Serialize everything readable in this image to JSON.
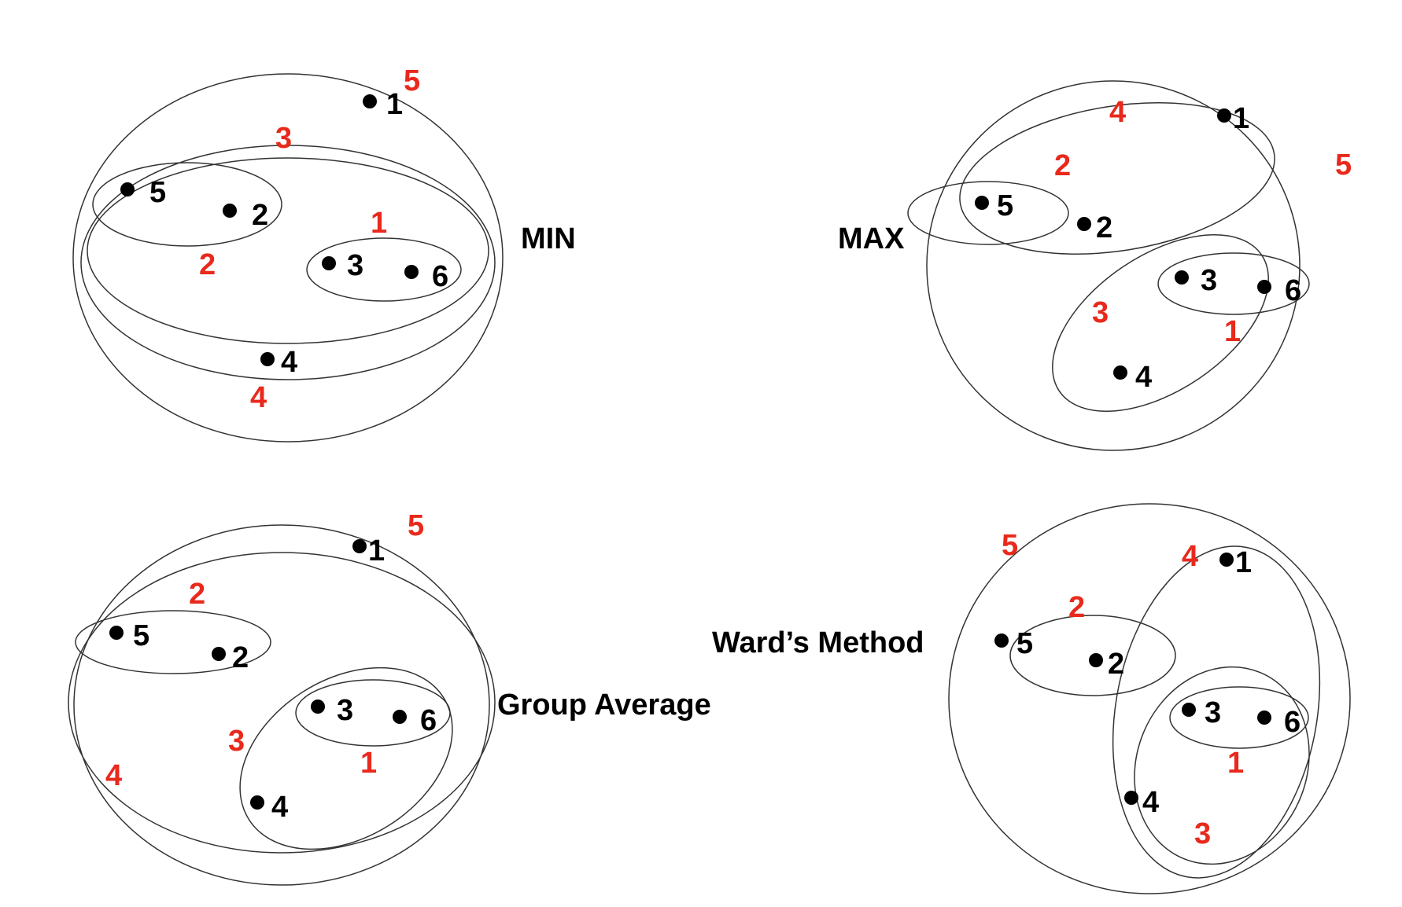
{
  "header": {
    "title_fragment": ""
  },
  "colors": {
    "ink": "#000000",
    "order": "#e8291c",
    "outline": "#333333"
  },
  "panels": [
    {
      "id": "min",
      "label": "MIN",
      "points": [
        {
          "id": "1",
          "label": "1"
        },
        {
          "id": "2",
          "label": "2"
        },
        {
          "id": "3",
          "label": "3"
        },
        {
          "id": "4",
          "label": "4"
        },
        {
          "id": "5",
          "label": "5"
        },
        {
          "id": "6",
          "label": "6"
        }
      ],
      "merge_labels": [
        "1",
        "2",
        "3",
        "4",
        "5"
      ]
    },
    {
      "id": "max",
      "label": "MAX",
      "points": [
        {
          "id": "1",
          "label": "1"
        },
        {
          "id": "2",
          "label": "2"
        },
        {
          "id": "3",
          "label": "3"
        },
        {
          "id": "4",
          "label": "4"
        },
        {
          "id": "5",
          "label": "5"
        },
        {
          "id": "6",
          "label": "6"
        }
      ],
      "merge_labels": [
        "1",
        "2",
        "3",
        "4",
        "5"
      ]
    },
    {
      "id": "group-average",
      "label": "Group Average",
      "points": [
        {
          "id": "1",
          "label": "1"
        },
        {
          "id": "2",
          "label": "2"
        },
        {
          "id": "3",
          "label": "3"
        },
        {
          "id": "4",
          "label": "4"
        },
        {
          "id": "5",
          "label": "5"
        },
        {
          "id": "6",
          "label": "6"
        }
      ],
      "merge_labels": [
        "1",
        "2",
        "3",
        "4",
        "5"
      ]
    },
    {
      "id": "wards-method",
      "label": "Ward’s Method",
      "points": [
        {
          "id": "1",
          "label": "1"
        },
        {
          "id": "2",
          "label": "2"
        },
        {
          "id": "3",
          "label": "3"
        },
        {
          "id": "4",
          "label": "4"
        },
        {
          "id": "5",
          "label": "5"
        },
        {
          "id": "6",
          "label": "6"
        }
      ],
      "merge_labels": [
        "1",
        "2",
        "3",
        "4",
        "5"
      ]
    }
  ]
}
